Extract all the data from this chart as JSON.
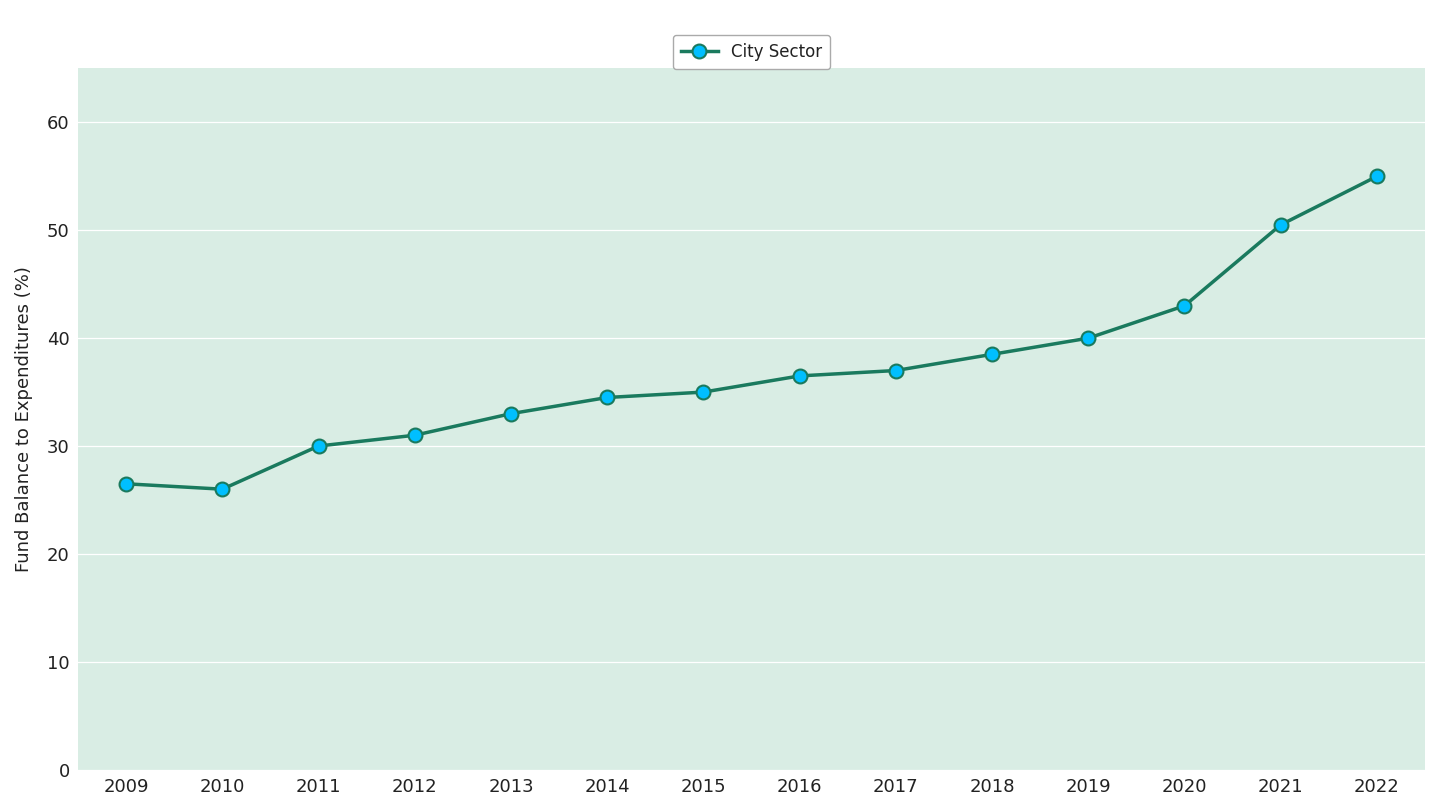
{
  "years": [
    2009,
    2010,
    2011,
    2012,
    2013,
    2014,
    2015,
    2016,
    2017,
    2018,
    2019,
    2020,
    2021,
    2022
  ],
  "values": [
    26.5,
    26.0,
    30.0,
    31.0,
    33.0,
    34.5,
    35.0,
    36.5,
    37.0,
    38.5,
    40.0,
    43.0,
    50.5,
    55.0
  ],
  "line_color": "#1a7a5e",
  "marker_color": "#00bfff",
  "marker_edge_color": "#1a7a5e",
  "legend_label": "City Sector",
  "ylabel": "Fund Balance to Expenditures (%)",
  "ylim": [
    0,
    65
  ],
  "yticks": [
    0,
    10,
    20,
    30,
    40,
    50,
    60
  ],
  "xlim": [
    2008.5,
    2022.5
  ],
  "figure_bg_color": "#ffffff",
  "plot_bg_color": "#d9ede4",
  "grid_color": "#ffffff",
  "tick_label_color": "#222222",
  "axis_label_color": "#222222",
  "legend_text_color": "#222222",
  "legend_bg": "#ffffff",
  "legend_edge": "#aaaaaa",
  "line_width": 2.5,
  "marker_size": 10,
  "font_size_ticks": 13,
  "font_size_ylabel": 13,
  "font_size_legend": 12
}
